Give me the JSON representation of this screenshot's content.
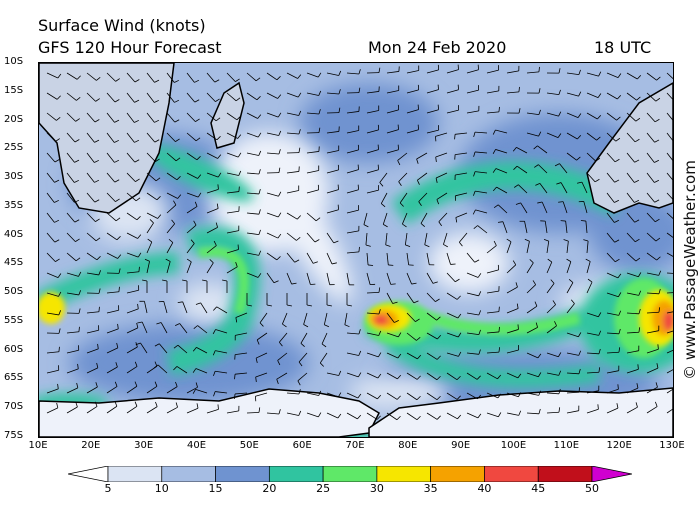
{
  "header": {
    "title": "Surface Wind (knots)",
    "subtitle": "GFS 120 Hour Forecast",
    "date": "Mon 24 Feb 2020",
    "time": "18 UTC"
  },
  "copyright": "© www.PassageWeather.com",
  "axes": {
    "lat_labels": [
      "10S",
      "15S",
      "20S",
      "25S",
      "30S",
      "35S",
      "40S",
      "45S",
      "50S",
      "55S",
      "60S",
      "65S",
      "70S",
      "75S"
    ],
    "lon_labels": [
      "10E",
      "20E",
      "30E",
      "40E",
      "50E",
      "60E",
      "70E",
      "80E",
      "90E",
      "100E",
      "110E",
      "120E",
      "130E"
    ]
  },
  "colorbar": {
    "labels": [
      "5",
      "10",
      "15",
      "20",
      "25",
      "30",
      "35",
      "40",
      "45",
      "50"
    ],
    "colors": [
      "#ffffff",
      "#dbe4f3",
      "#a6bde3",
      "#6f93d0",
      "#30c4a0",
      "#5fe868",
      "#f6e600",
      "#f5a200",
      "#f04840",
      "#c10f1b",
      "#d000d0"
    ]
  }
}
